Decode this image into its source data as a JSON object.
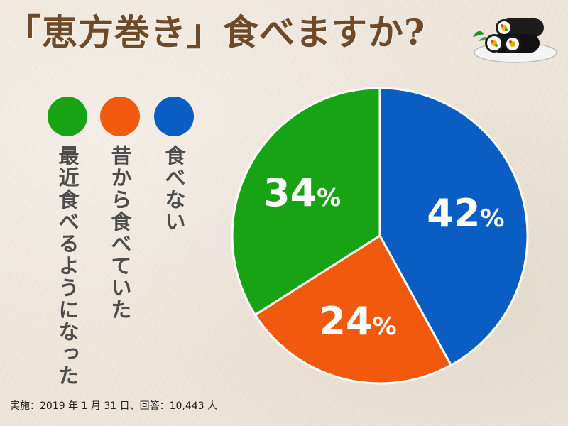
{
  "title": "「恵方巻き」食べますか?",
  "footnote": "実施：2019 年 1 月 31 日、回答：10,443 人",
  "colors": {
    "blue": "#0a5dc2",
    "orange": "#f15a0e",
    "green": "#17a313"
  },
  "chart_data": {
    "type": "pie",
    "title": "「恵方巻き」食べますか?",
    "legend_position": "left",
    "slices": [
      {
        "label": "食べない",
        "value": 42,
        "display": "42%",
        "color": "#0a5dc2"
      },
      {
        "label": "昔から食べていた",
        "value": 24,
        "display": "24%",
        "color": "#f15a0e"
      },
      {
        "label": "最近食べるようになった",
        "value": 34,
        "display": "34%",
        "color": "#17a313"
      }
    ]
  }
}
